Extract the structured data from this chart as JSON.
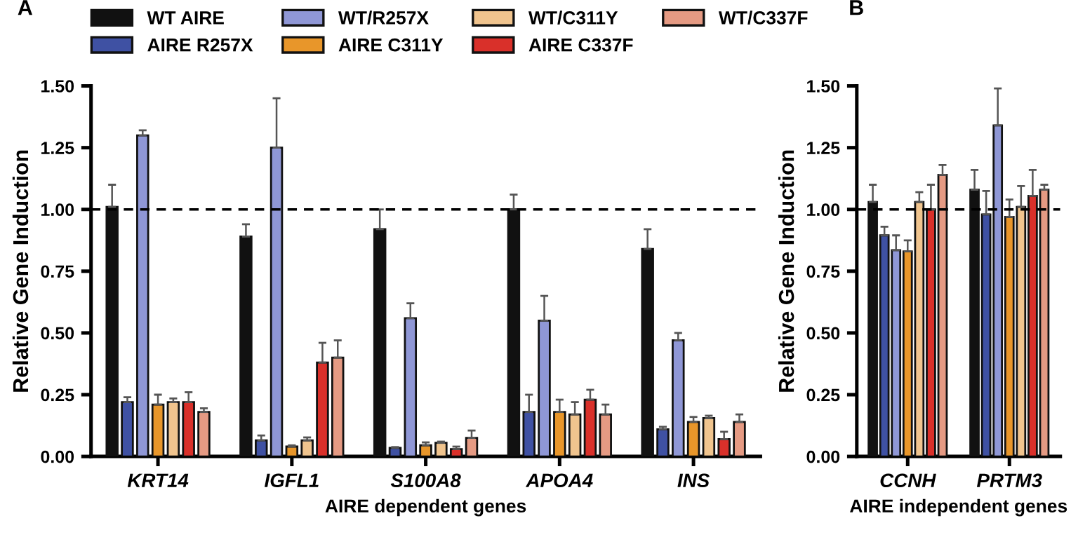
{
  "chart_data": [
    {
      "type": "bar",
      "title": "A",
      "xlabel": "AIRE dependent genes",
      "ylabel": "Relative Gene Induction",
      "categories": [
        "KRT14",
        "IGFL1",
        "S100A8",
        "APOA4",
        "INS"
      ],
      "ylim": [
        0,
        1.5
      ],
      "yticks": [
        {
          "value": 0,
          "label": "0.00"
        },
        {
          "value": 0.25,
          "label": "0.25"
        },
        {
          "value": 0.5,
          "label": "0.50"
        },
        {
          "value": 0.75,
          "label": "0.75"
        },
        {
          "value": 1,
          "label": "1.00"
        },
        {
          "value": 1.25,
          "label": "1.25"
        },
        {
          "value": 1.5,
          "label": "1.50"
        }
      ],
      "legend": "top",
      "grid": false,
      "ref_lines": [
        {
          "axis": "y",
          "value": 1.0,
          "line_style": "dashed",
          "color": "#000000"
        }
      ],
      "series": [
        {
          "name": "WT AIRE",
          "color": "#111111",
          "values": [
            1.01,
            0.89,
            0.92,
            1.0,
            0.84
          ],
          "errors": [
            [
              1.01,
              1.1
            ],
            [
              0.89,
              0.94
            ],
            [
              0.92,
              1.0
            ],
            [
              1.0,
              1.06
            ],
            [
              0.84,
              0.92
            ]
          ]
        },
        {
          "name": "AIRE R257X",
          "color": "#3f51a3",
          "values": [
            0.22,
            0.065,
            0.035,
            0.18,
            0.11
          ],
          "errors": [
            [
              0.22,
              0.24
            ],
            [
              0.065,
              0.085
            ],
            [
              0.035,
              0.038
            ],
            [
              0.18,
              0.25
            ],
            [
              0.11,
              0.12
            ]
          ]
        },
        {
          "name": "WT/R257X",
          "color": "#8f97d6",
          "values": [
            1.3,
            1.25,
            0.56,
            0.55,
            0.47
          ],
          "errors": [
            [
              1.3,
              1.32
            ],
            [
              1.25,
              1.45
            ],
            [
              0.56,
              0.62
            ],
            [
              0.55,
              0.65
            ],
            [
              0.47,
              0.5
            ]
          ]
        },
        {
          "name": "AIRE C311Y",
          "color": "#e8962a",
          "values": [
            0.21,
            0.04,
            0.045,
            0.18,
            0.14
          ],
          "errors": [
            [
              0.21,
              0.25
            ],
            [
              0.04,
              0.045
            ],
            [
              0.045,
              0.057
            ],
            [
              0.18,
              0.23
            ],
            [
              0.14,
              0.16
            ]
          ]
        },
        {
          "name": "WT/C311Y",
          "color": "#f0c48e",
          "values": [
            0.22,
            0.065,
            0.055,
            0.17,
            0.155
          ],
          "errors": [
            [
              0.22,
              0.235
            ],
            [
              0.065,
              0.077
            ],
            [
              0.055,
              0.06
            ],
            [
              0.17,
              0.22
            ],
            [
              0.155,
              0.165
            ]
          ]
        },
        {
          "name": "AIRE C337F",
          "color": "#d9302a",
          "values": [
            0.22,
            0.38,
            0.03,
            0.23,
            0.07
          ],
          "errors": [
            [
              0.22,
              0.26
            ],
            [
              0.38,
              0.46
            ],
            [
              0.03,
              0.04
            ],
            [
              0.23,
              0.27
            ],
            [
              0.07,
              0.1
            ]
          ]
        },
        {
          "name": "WT/C337F",
          "color": "#e59a83",
          "values": [
            0.18,
            0.4,
            0.075,
            0.17,
            0.14
          ],
          "errors": [
            [
              0.18,
              0.195
            ],
            [
              0.4,
              0.47
            ],
            [
              0.075,
              0.105
            ],
            [
              0.17,
              0.21
            ],
            [
              0.14,
              0.17
            ]
          ]
        }
      ]
    },
    {
      "type": "bar",
      "title": "B",
      "xlabel": "AIRE independent genes",
      "ylabel": "Relative Gene Induction",
      "categories": [
        "CCNH",
        "PRTM3"
      ],
      "ylim": [
        0,
        1.5
      ],
      "yticks": [
        {
          "value": 0,
          "label": "0.00"
        },
        {
          "value": 0.25,
          "label": "0.25"
        },
        {
          "value": 0.5,
          "label": "0.50"
        },
        {
          "value": 0.75,
          "label": "0.75"
        },
        {
          "value": 1,
          "label": "1.00"
        },
        {
          "value": 1.25,
          "label": "1.25"
        },
        {
          "value": 1.5,
          "label": "1.50"
        }
      ],
      "grid": false,
      "ref_lines": [
        {
          "axis": "y",
          "value": 1.0,
          "line_style": "dashed",
          "color": "#000000"
        }
      ],
      "series": [
        {
          "color": "#111111",
          "values": [
            1.03,
            1.08
          ],
          "errors": [
            [
              1.03,
              1.1
            ],
            [
              1.08,
              1.16
            ]
          ]
        },
        {
          "color": "#3f51a3",
          "values": [
            0.895,
            0.98
          ],
          "errors": [
            [
              0.895,
              0.93
            ],
            [
              0.98,
              1.075
            ]
          ]
        },
        {
          "color": "#8f97d6",
          "values": [
            0.835,
            1.34
          ],
          "errors": [
            [
              0.835,
              0.895
            ],
            [
              1.34,
              1.49
            ]
          ]
        },
        {
          "color": "#e8962a",
          "values": [
            0.83,
            0.97
          ],
          "errors": [
            [
              0.83,
              0.875
            ],
            [
              0.97,
              1.04
            ]
          ]
        },
        {
          "color": "#f0c48e",
          "values": [
            1.03,
            1.01
          ],
          "errors": [
            [
              1.03,
              1.07
            ],
            [
              1.01,
              1.095
            ]
          ]
        },
        {
          "color": "#d9302a",
          "values": [
            1.0,
            1.055
          ],
          "errors": [
            [
              1.0,
              1.1
            ],
            [
              1.055,
              1.16
            ]
          ]
        },
        {
          "color": "#e59a83",
          "values": [
            1.14,
            1.08
          ],
          "errors": [
            [
              1.14,
              1.18
            ],
            [
              1.08,
              1.1
            ]
          ]
        }
      ]
    }
  ]
}
